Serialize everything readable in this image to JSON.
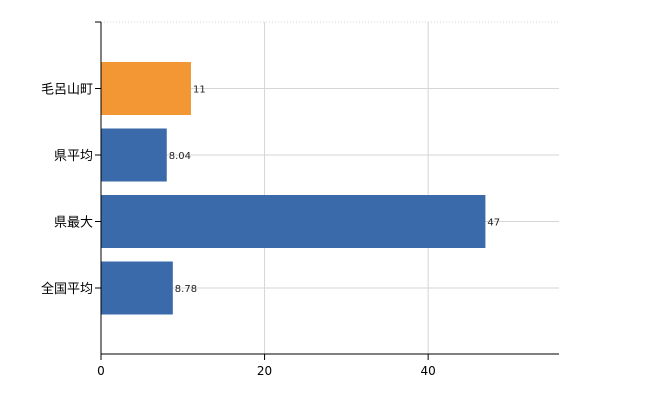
{
  "chart_data": {
    "type": "bar",
    "orientation": "horizontal",
    "categories": [
      "毛呂山町",
      "県平均",
      "県最大",
      "全国平均"
    ],
    "values": [
      11,
      8.04,
      47,
      8.78
    ],
    "value_labels": [
      "11",
      "8.04",
      "47",
      "8.78"
    ],
    "bar_colors": [
      "#f29733",
      "#3a6aa9",
      "#3a6aa9",
      "#3a6aa9"
    ],
    "xlim": [
      0,
      56
    ],
    "xticks": [
      0,
      20,
      40
    ],
    "grid": true,
    "title": "",
    "xlabel": "",
    "ylabel": ""
  },
  "colors": {
    "highlight": "#f29733",
    "default": "#3a6aa9",
    "grid": "#d6d6d6",
    "axis": "#000000",
    "text": "#000000",
    "label": "#222222"
  }
}
